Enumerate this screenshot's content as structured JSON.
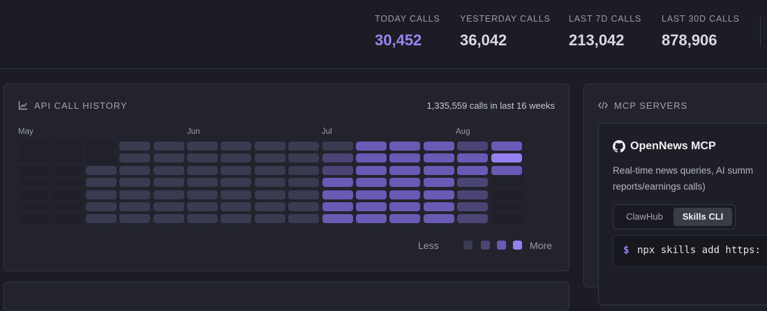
{
  "stats": [
    {
      "label": "TODAY CALLS",
      "value": "30,452"
    },
    {
      "label": "YESTERDAY CALLS",
      "value": "36,042"
    },
    {
      "label": "LAST 7D CALLS",
      "value": "213,042"
    },
    {
      "label": "LAST 30D CALLS",
      "value": "878,906"
    }
  ],
  "history": {
    "title": "API CALL HISTORY",
    "summary": "1,335,559 calls in last 16 weeks",
    "months": [
      "May",
      "Jun",
      "Jul",
      "Aug"
    ],
    "legend": {
      "less": "Less",
      "more": "More"
    },
    "heatmap_levels": [
      [
        0,
        0,
        0,
        0,
        0,
        0,
        0
      ],
      [
        0,
        0,
        0,
        0,
        0,
        0,
        0
      ],
      [
        0,
        0,
        1,
        1,
        1,
        1,
        1
      ],
      [
        1,
        1,
        1,
        1,
        1,
        1,
        1
      ],
      [
        1,
        1,
        1,
        1,
        1,
        1,
        1
      ],
      [
        1,
        1,
        1,
        1,
        1,
        1,
        1
      ],
      [
        1,
        1,
        1,
        1,
        1,
        1,
        1
      ],
      [
        1,
        1,
        1,
        1,
        1,
        1,
        1
      ],
      [
        1,
        1,
        1,
        1,
        1,
        1,
        1
      ],
      [
        1,
        2,
        2,
        3,
        3,
        3,
        3
      ],
      [
        3,
        3,
        3,
        3,
        3,
        3,
        3
      ],
      [
        3,
        3,
        3,
        3,
        3,
        3,
        3
      ],
      [
        3,
        3,
        3,
        3,
        3,
        3,
        3
      ],
      [
        2,
        3,
        3,
        2,
        2,
        2,
        2
      ],
      [
        3,
        4,
        3,
        0,
        0,
        0,
        0
      ]
    ],
    "colors": {
      "level0": "#1f2029",
      "level1": "#3a3a51",
      "level2": "#4b4575",
      "level3": "#6b59b6",
      "level4": "#9680f1",
      "accent": "#9d84f7"
    }
  },
  "mcp": {
    "title": "MCP SERVERS",
    "item": {
      "icon": "github-icon",
      "name": "OpenNews MCP",
      "description": "Real-time news queries, AI summ reports/earnings calls)",
      "tabs": [
        "ClawHub",
        "Skills CLI"
      ],
      "active_tab": "Skills CLI",
      "command_prompt": "$",
      "command": "npx skills add https:"
    }
  }
}
